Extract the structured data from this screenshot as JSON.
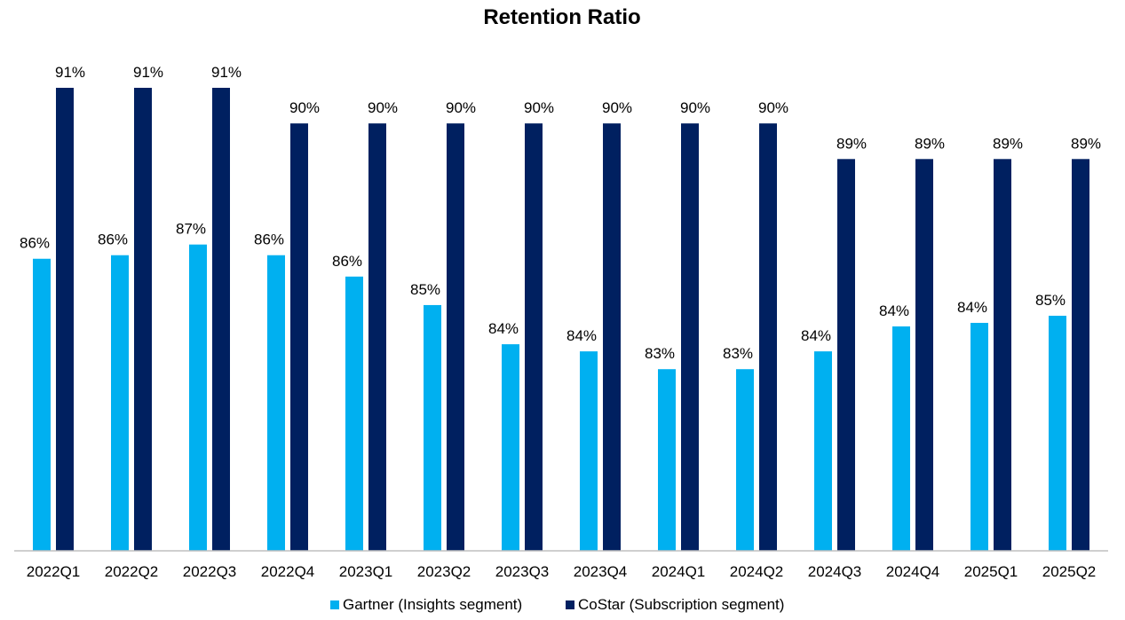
{
  "chart_data": {
    "type": "bar",
    "title": "Retention Ratio",
    "xlabel": "",
    "ylabel": "",
    "categories": [
      "2022Q1",
      "2022Q2",
      "2022Q3",
      "2022Q4",
      "2023Q1",
      "2023Q2",
      "2023Q3",
      "2023Q4",
      "2024Q1",
      "2024Q2",
      "2024Q3",
      "2024Q4",
      "2025Q1",
      "2025Q2"
    ],
    "series": [
      {
        "name": "Gartner (Insights segment)",
        "color": "#00b0f0",
        "values": [
          86.2,
          86.3,
          86.6,
          86.3,
          85.7,
          84.9,
          83.8,
          83.6,
          83.1,
          83.1,
          83.6,
          84.3,
          84.4,
          84.6
        ],
        "labels": [
          "86%",
          "86%",
          "87%",
          "86%",
          "86%",
          "85%",
          "84%",
          "84%",
          "83%",
          "83%",
          "84%",
          "84%",
          "84%",
          "85%"
        ]
      },
      {
        "name": "CoStar (Subscription segment)",
        "color": "#002060",
        "values": [
          91.0,
          91.0,
          91.0,
          90.0,
          90.0,
          90.0,
          90.0,
          90.0,
          90.0,
          90.0,
          89.0,
          89.0,
          89.0,
          89.0
        ],
        "labels": [
          "91%",
          "91%",
          "91%",
          "90%",
          "90%",
          "90%",
          "90%",
          "90%",
          "90%",
          "90%",
          "89%",
          "89%",
          "89%",
          "89%"
        ]
      }
    ],
    "ylim": [
      78,
      91
    ],
    "grid": false,
    "legend": "bottom",
    "axis_color": "#bfbfbf"
  }
}
